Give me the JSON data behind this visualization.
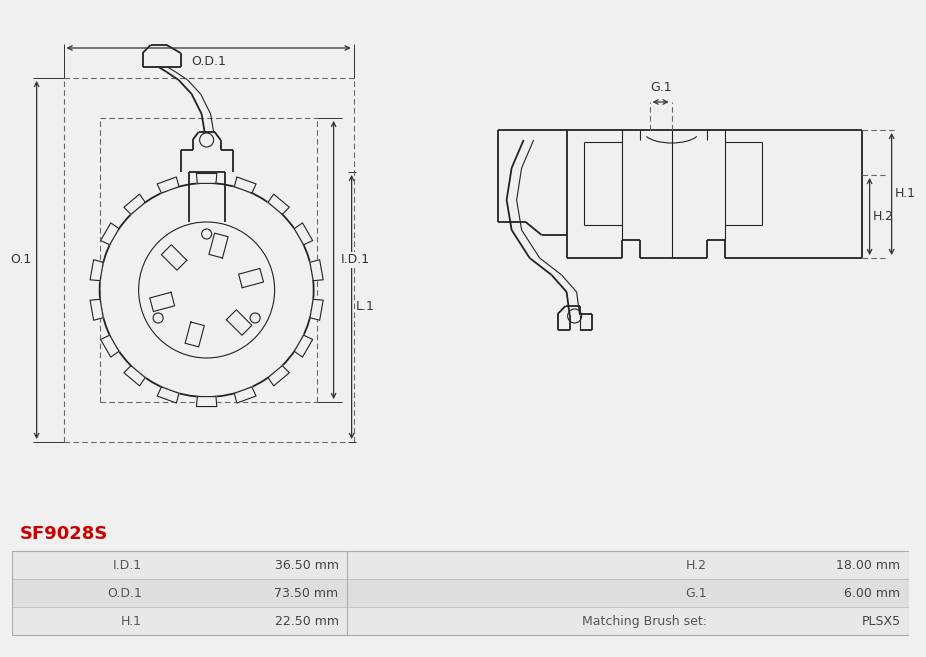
{
  "title": "SF9028S",
  "title_color": "#cc0000",
  "bg_color": "#f0f0f0",
  "table_rows": [
    [
      "I.D.1",
      "36.50 mm",
      "H.2",
      "18.00 mm"
    ],
    [
      "O.D.1",
      "73.50 mm",
      "G.1",
      "6.00 mm"
    ],
    [
      "H.1",
      "22.50 mm",
      "Matching Brush set:",
      "PLSX5"
    ]
  ],
  "table_row_bg1": "#e8e8e8",
  "table_row_bg2": "#dedede",
  "dim_color": "#333333",
  "line_color": "#222222",
  "drawing_bg": "#f0f0f0",
  "labels": {
    "L1": "L.1",
    "ID1": "I.D.1",
    "OD1": "O.D.1",
    "O1": "O.1",
    "H1": "H.1",
    "H2": "H.2",
    "G1": "G.1"
  }
}
